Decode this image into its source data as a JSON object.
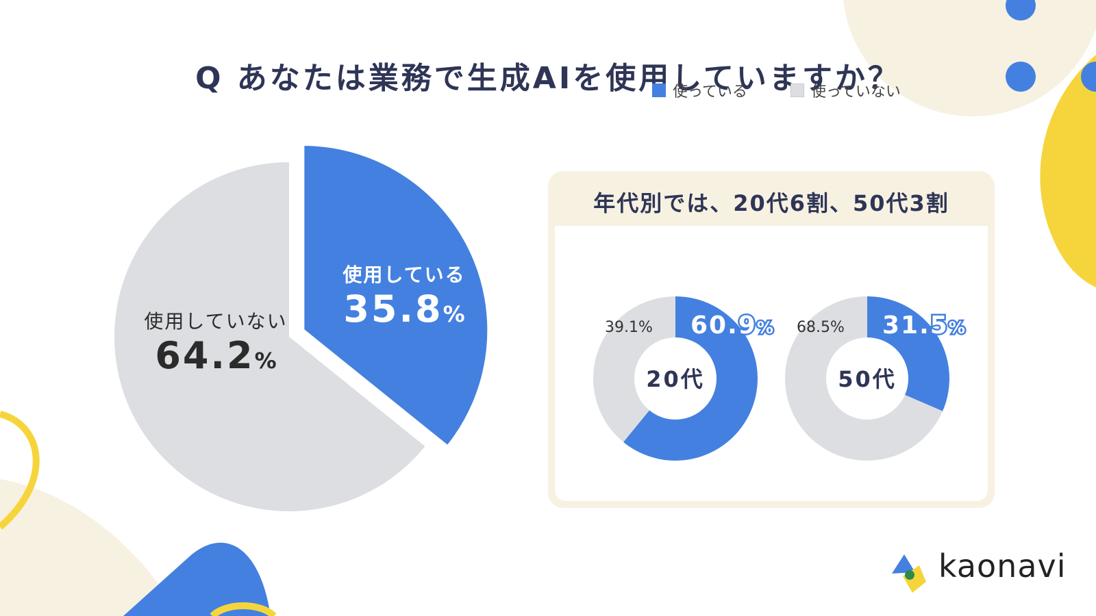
{
  "title": "Q あなたは業務で生成AIを使用していますか？",
  "colors": {
    "used": "#4480df",
    "not_used": "#dcdee2",
    "accent_yellow": "#f6d53c",
    "cream": "#f7f1e2"
  },
  "main_pie": {
    "used_label": "使用している",
    "used_value": "35.8",
    "not_used_label": "使用していない",
    "not_used_value": "64.2",
    "unit": "%"
  },
  "panel": {
    "heading": "年代別では、20代6割、50代3割",
    "legend": {
      "used": "使っている",
      "not_used": "使っていない"
    },
    "donuts": [
      {
        "center": "20代",
        "used_text": "60.9",
        "not_used_text": "39.1%"
      },
      {
        "center": "50代",
        "used_text": "31.5",
        "not_used_text": "68.5%"
      }
    ]
  },
  "logo": {
    "text": "kaonavi"
  },
  "chart_data": [
    {
      "type": "pie",
      "title": "Q あなたは業務で生成AIを使用していますか？",
      "categories": [
        "使用している",
        "使用していない"
      ],
      "values": [
        35.8,
        64.2
      ]
    },
    {
      "type": "pie",
      "title": "20代",
      "categories": [
        "使っている",
        "使っていない"
      ],
      "values": [
        60.9,
        39.1
      ]
    },
    {
      "type": "pie",
      "title": "50代",
      "categories": [
        "使っている",
        "使っていない"
      ],
      "values": [
        31.5,
        68.5
      ]
    }
  ]
}
